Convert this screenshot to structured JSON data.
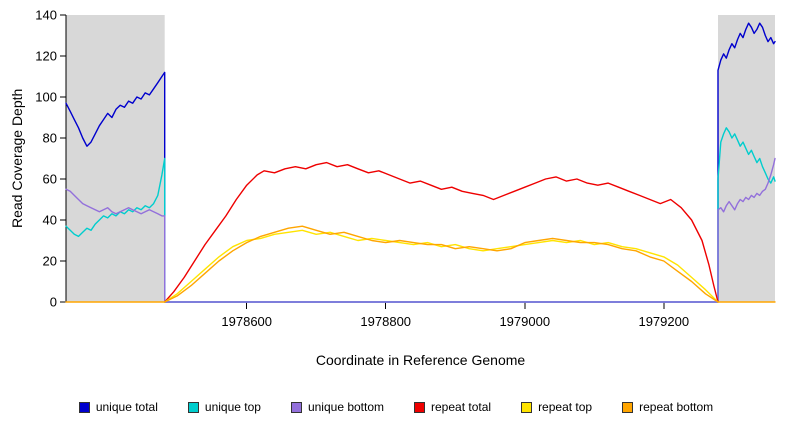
{
  "chart_data": {
    "type": "line",
    "title": "",
    "xlabel": "Coordinate in Reference Genome",
    "ylabel": "Read Coverage Depth",
    "xlim": [
      1978340,
      1979360
    ],
    "ylim": [
      0,
      140
    ],
    "x_ticks": [
      1978600,
      1978800,
      1979000,
      1979200
    ],
    "y_ticks": [
      0,
      20,
      40,
      60,
      80,
      100,
      120,
      140
    ],
    "grid": false,
    "legend_position": "bottom",
    "shaded_regions": [
      {
        "from": 1978340,
        "to": 1978482,
        "color": "#d8d8d8"
      },
      {
        "from": 1979278,
        "to": 1979360,
        "color": "#d8d8d8"
      }
    ],
    "series": [
      {
        "name": "unique total",
        "color": "#0000CD",
        "points": [
          [
            1978340,
            97
          ],
          [
            1978346,
            93
          ],
          [
            1978352,
            89
          ],
          [
            1978358,
            85
          ],
          [
            1978364,
            80
          ],
          [
            1978370,
            76
          ],
          [
            1978376,
            78
          ],
          [
            1978382,
            82
          ],
          [
            1978388,
            86
          ],
          [
            1978394,
            89
          ],
          [
            1978400,
            92
          ],
          [
            1978406,
            90
          ],
          [
            1978412,
            94
          ],
          [
            1978418,
            96
          ],
          [
            1978424,
            95
          ],
          [
            1978430,
            98
          ],
          [
            1978436,
            97
          ],
          [
            1978442,
            100
          ],
          [
            1978448,
            99
          ],
          [
            1978454,
            102
          ],
          [
            1978460,
            101
          ],
          [
            1978466,
            104
          ],
          [
            1978472,
            107
          ],
          [
            1978478,
            110
          ],
          [
            1978482,
            112
          ],
          [
            1978482,
            0
          ],
          [
            1979278,
            0
          ],
          [
            1979278,
            113
          ],
          [
            1979282,
            118
          ],
          [
            1979286,
            121
          ],
          [
            1979290,
            119
          ],
          [
            1979294,
            123
          ],
          [
            1979298,
            126
          ],
          [
            1979302,
            124
          ],
          [
            1979306,
            128
          ],
          [
            1979310,
            131
          ],
          [
            1979314,
            129
          ],
          [
            1979318,
            133
          ],
          [
            1979322,
            136
          ],
          [
            1979326,
            134
          ],
          [
            1979330,
            131
          ],
          [
            1979334,
            133
          ],
          [
            1979338,
            136
          ],
          [
            1979342,
            134
          ],
          [
            1979346,
            130
          ],
          [
            1979350,
            127
          ],
          [
            1979354,
            129
          ],
          [
            1979358,
            126
          ],
          [
            1979360,
            127
          ]
        ]
      },
      {
        "name": "unique top",
        "color": "#00CDCD",
        "points": [
          [
            1978340,
            37
          ],
          [
            1978346,
            35
          ],
          [
            1978352,
            33
          ],
          [
            1978358,
            32
          ],
          [
            1978364,
            34
          ],
          [
            1978370,
            36
          ],
          [
            1978376,
            35
          ],
          [
            1978382,
            38
          ],
          [
            1978388,
            40
          ],
          [
            1978394,
            42
          ],
          [
            1978400,
            41
          ],
          [
            1978406,
            43
          ],
          [
            1978412,
            42
          ],
          [
            1978418,
            44
          ],
          [
            1978424,
            43
          ],
          [
            1978430,
            45
          ],
          [
            1978436,
            44
          ],
          [
            1978442,
            46
          ],
          [
            1978448,
            45
          ],
          [
            1978454,
            47
          ],
          [
            1978460,
            46
          ],
          [
            1978466,
            48
          ],
          [
            1978472,
            52
          ],
          [
            1978478,
            62
          ],
          [
            1978482,
            70
          ],
          [
            1978482,
            0
          ],
          [
            1979278,
            0
          ],
          [
            1979278,
            60
          ],
          [
            1979282,
            78
          ],
          [
            1979286,
            82
          ],
          [
            1979290,
            85
          ],
          [
            1979294,
            83
          ],
          [
            1979298,
            80
          ],
          [
            1979302,
            82
          ],
          [
            1979306,
            79
          ],
          [
            1979310,
            76
          ],
          [
            1979314,
            78
          ],
          [
            1979318,
            75
          ],
          [
            1979322,
            72
          ],
          [
            1979326,
            74
          ],
          [
            1979330,
            71
          ],
          [
            1979334,
            68
          ],
          [
            1979338,
            70
          ],
          [
            1979342,
            66
          ],
          [
            1979346,
            63
          ],
          [
            1979350,
            60
          ],
          [
            1979354,
            58
          ],
          [
            1979358,
            61
          ],
          [
            1979360,
            59
          ]
        ]
      },
      {
        "name": "unique bottom",
        "color": "#9370DB",
        "points": [
          [
            1978340,
            55
          ],
          [
            1978346,
            54
          ],
          [
            1978352,
            52
          ],
          [
            1978358,
            50
          ],
          [
            1978364,
            48
          ],
          [
            1978370,
            47
          ],
          [
            1978376,
            46
          ],
          [
            1978382,
            45
          ],
          [
            1978388,
            44
          ],
          [
            1978394,
            45
          ],
          [
            1978400,
            46
          ],
          [
            1978406,
            44
          ],
          [
            1978412,
            43
          ],
          [
            1978418,
            44
          ],
          [
            1978424,
            45
          ],
          [
            1978430,
            46
          ],
          [
            1978436,
            45
          ],
          [
            1978442,
            44
          ],
          [
            1978448,
            43
          ],
          [
            1978454,
            44
          ],
          [
            1978460,
            45
          ],
          [
            1978466,
            44
          ],
          [
            1978472,
            43
          ],
          [
            1978478,
            42
          ],
          [
            1978482,
            42
          ],
          [
            1978482,
            0
          ],
          [
            1979278,
            0
          ],
          [
            1979278,
            45
          ],
          [
            1979282,
            46
          ],
          [
            1979286,
            44
          ],
          [
            1979290,
            47
          ],
          [
            1979294,
            49
          ],
          [
            1979298,
            47
          ],
          [
            1979302,
            45
          ],
          [
            1979306,
            48
          ],
          [
            1979310,
            50
          ],
          [
            1979314,
            49
          ],
          [
            1979318,
            51
          ],
          [
            1979322,
            50
          ],
          [
            1979326,
            52
          ],
          [
            1979330,
            51
          ],
          [
            1979334,
            53
          ],
          [
            1979338,
            52
          ],
          [
            1979342,
            54
          ],
          [
            1979346,
            55
          ],
          [
            1979350,
            58
          ],
          [
            1979354,
            62
          ],
          [
            1979358,
            67
          ],
          [
            1979360,
            70
          ]
        ]
      },
      {
        "name": "repeat total",
        "color": "#EE0000",
        "points": [
          [
            1978482,
            0
          ],
          [
            1978495,
            5
          ],
          [
            1978510,
            12
          ],
          [
            1978525,
            20
          ],
          [
            1978540,
            28
          ],
          [
            1978555,
            35
          ],
          [
            1978570,
            42
          ],
          [
            1978585,
            50
          ],
          [
            1978600,
            57
          ],
          [
            1978615,
            62
          ],
          [
            1978625,
            64
          ],
          [
            1978640,
            63
          ],
          [
            1978655,
            65
          ],
          [
            1978670,
            66
          ],
          [
            1978685,
            65
          ],
          [
            1978700,
            67
          ],
          [
            1978715,
            68
          ],
          [
            1978730,
            66
          ],
          [
            1978745,
            67
          ],
          [
            1978760,
            65
          ],
          [
            1978775,
            63
          ],
          [
            1978790,
            64
          ],
          [
            1978805,
            62
          ],
          [
            1978820,
            60
          ],
          [
            1978835,
            58
          ],
          [
            1978850,
            59
          ],
          [
            1978865,
            57
          ],
          [
            1978880,
            55
          ],
          [
            1978895,
            56
          ],
          [
            1978910,
            54
          ],
          [
            1978925,
            53
          ],
          [
            1978940,
            52
          ],
          [
            1978955,
            50
          ],
          [
            1978970,
            52
          ],
          [
            1978985,
            54
          ],
          [
            1979000,
            56
          ],
          [
            1979015,
            58
          ],
          [
            1979030,
            60
          ],
          [
            1979045,
            61
          ],
          [
            1979060,
            59
          ],
          [
            1979075,
            60
          ],
          [
            1979090,
            58
          ],
          [
            1979105,
            57
          ],
          [
            1979120,
            58
          ],
          [
            1979135,
            56
          ],
          [
            1979150,
            54
          ],
          [
            1979165,
            52
          ],
          [
            1979180,
            50
          ],
          [
            1979195,
            48
          ],
          [
            1979210,
            50
          ],
          [
            1979225,
            46
          ],
          [
            1979240,
            40
          ],
          [
            1979255,
            30
          ],
          [
            1979265,
            18
          ],
          [
            1979272,
            8
          ],
          [
            1979278,
            0
          ]
        ]
      },
      {
        "name": "repeat top",
        "color": "#FFE400",
        "points": [
          [
            1978482,
            0
          ],
          [
            1978500,
            4
          ],
          [
            1978520,
            10
          ],
          [
            1978540,
            16
          ],
          [
            1978560,
            22
          ],
          [
            1978580,
            27
          ],
          [
            1978600,
            30
          ],
          [
            1978620,
            31
          ],
          [
            1978640,
            33
          ],
          [
            1978660,
            34
          ],
          [
            1978680,
            35
          ],
          [
            1978700,
            33
          ],
          [
            1978720,
            34
          ],
          [
            1978740,
            32
          ],
          [
            1978760,
            30
          ],
          [
            1978780,
            31
          ],
          [
            1978800,
            30
          ],
          [
            1978820,
            29
          ],
          [
            1978840,
            28
          ],
          [
            1978860,
            29
          ],
          [
            1978880,
            27
          ],
          [
            1978900,
            28
          ],
          [
            1978920,
            26
          ],
          [
            1978940,
            25
          ],
          [
            1978960,
            26
          ],
          [
            1978980,
            27
          ],
          [
            1979000,
            28
          ],
          [
            1979020,
            29
          ],
          [
            1979040,
            30
          ],
          [
            1979060,
            29
          ],
          [
            1979080,
            30
          ],
          [
            1979100,
            28
          ],
          [
            1979120,
            29
          ],
          [
            1979140,
            27
          ],
          [
            1979160,
            26
          ],
          [
            1979180,
            24
          ],
          [
            1979200,
            22
          ],
          [
            1979220,
            18
          ],
          [
            1979240,
            12
          ],
          [
            1979260,
            6
          ],
          [
            1979278,
            0
          ]
        ]
      },
      {
        "name": "repeat bottom",
        "color": "#FFA500",
        "points": [
          [
            1978340,
            0
          ],
          [
            1978482,
            0
          ],
          [
            1978500,
            3
          ],
          [
            1978520,
            8
          ],
          [
            1978540,
            14
          ],
          [
            1978560,
            20
          ],
          [
            1978580,
            25
          ],
          [
            1978600,
            29
          ],
          [
            1978620,
            32
          ],
          [
            1978640,
            34
          ],
          [
            1978660,
            36
          ],
          [
            1978680,
            37
          ],
          [
            1978700,
            35
          ],
          [
            1978720,
            33
          ],
          [
            1978740,
            34
          ],
          [
            1978760,
            32
          ],
          [
            1978780,
            30
          ],
          [
            1978800,
            29
          ],
          [
            1978820,
            30
          ],
          [
            1978840,
            29
          ],
          [
            1978860,
            28
          ],
          [
            1978880,
            28
          ],
          [
            1978900,
            26
          ],
          [
            1978920,
            27
          ],
          [
            1978940,
            26
          ],
          [
            1978960,
            25
          ],
          [
            1978980,
            26
          ],
          [
            1979000,
            29
          ],
          [
            1979020,
            30
          ],
          [
            1979040,
            31
          ],
          [
            1979060,
            30
          ],
          [
            1979080,
            29
          ],
          [
            1979100,
            29
          ],
          [
            1979120,
            28
          ],
          [
            1979140,
            26
          ],
          [
            1979160,
            25
          ],
          [
            1979180,
            22
          ],
          [
            1979200,
            20
          ],
          [
            1979220,
            15
          ],
          [
            1979240,
            10
          ],
          [
            1979260,
            4
          ],
          [
            1979278,
            0
          ],
          [
            1979360,
            0
          ]
        ]
      }
    ]
  }
}
